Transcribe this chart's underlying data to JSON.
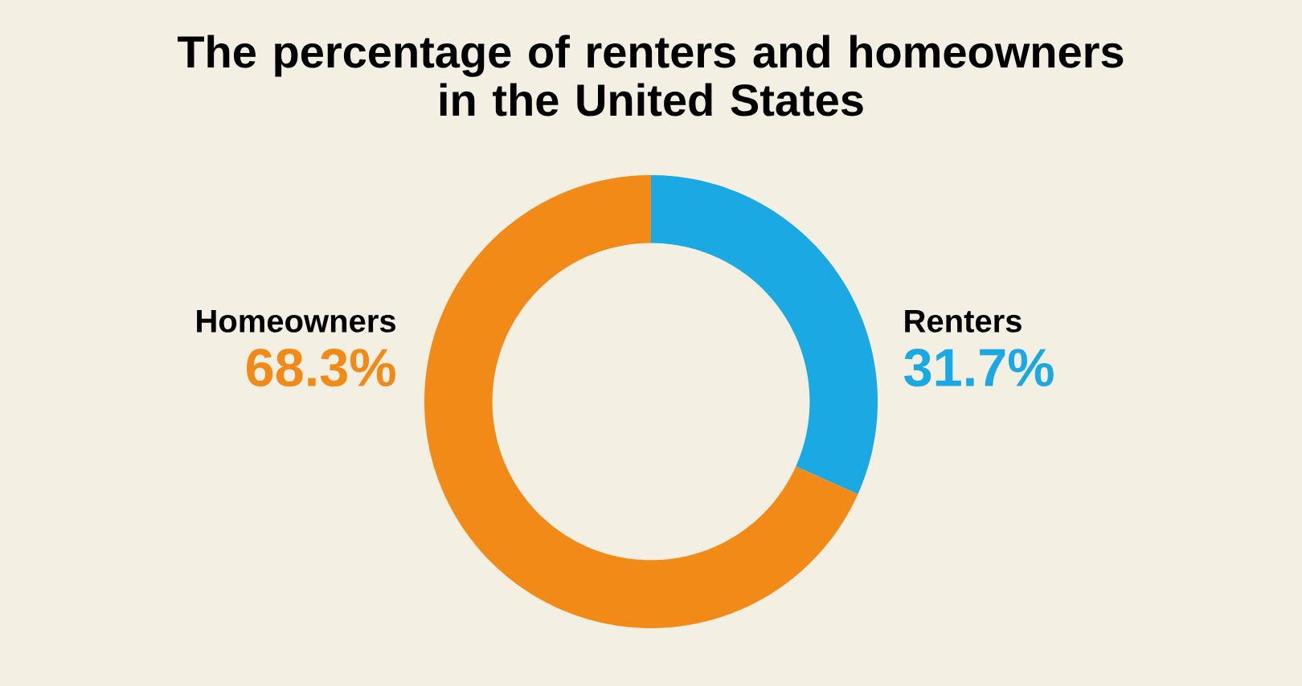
{
  "chart_data": {
    "type": "donut",
    "title": "The percentage of renters and homeowners\nin the United States",
    "categories": [
      "Renters",
      "Homeowners"
    ],
    "values": [
      31.7,
      68.3
    ],
    "colors": [
      "#1aa9e2",
      "#f28a17"
    ],
    "value_labels": [
      "31.7%",
      "68.3%"
    ]
  }
}
